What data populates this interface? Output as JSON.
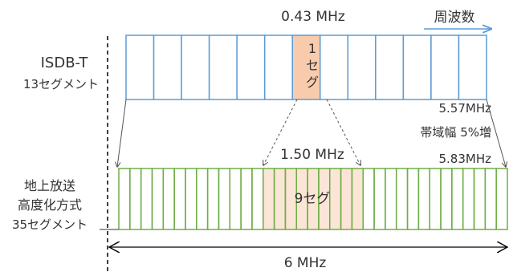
{
  "isdb_t": {
    "name": "ISDB-T",
    "segments_label": "13セグメント",
    "segment_count": 13,
    "highlight_segment_index": 6,
    "highlight_label_line1": "1",
    "highlight_label_line2": "セ",
    "highlight_label_line3": "グ",
    "segment_bandwidth": "0.43 MHz",
    "total_bandwidth": "5.57MHz"
  },
  "frequency_axis": {
    "label": "周波数"
  },
  "bandwidth_increase": "帯域幅 5%増",
  "advanced": {
    "name_line1": "地上放送",
    "name_line2": "高度化方式",
    "segments_label": "35セグメント",
    "segment_count": 35,
    "highlight_start_index": 13,
    "highlight_count": 9,
    "highlight_label": "9セグ",
    "highlight_bandwidth": "1.50 MHz",
    "total_bandwidth": "5.83MHz"
  },
  "channel_bandwidth": "6 MHz",
  "colors": {
    "isdb_t_stroke": "#5B9BD5",
    "advanced_stroke": "#70AD47",
    "highlight_isdb_fill": "#F8CBAD",
    "highlight_advanced_fill": "#FBE5D6",
    "arrow": "#5B9BD5",
    "text": "#333333",
    "guide": "#555555",
    "channel_edge": "#000000"
  }
}
